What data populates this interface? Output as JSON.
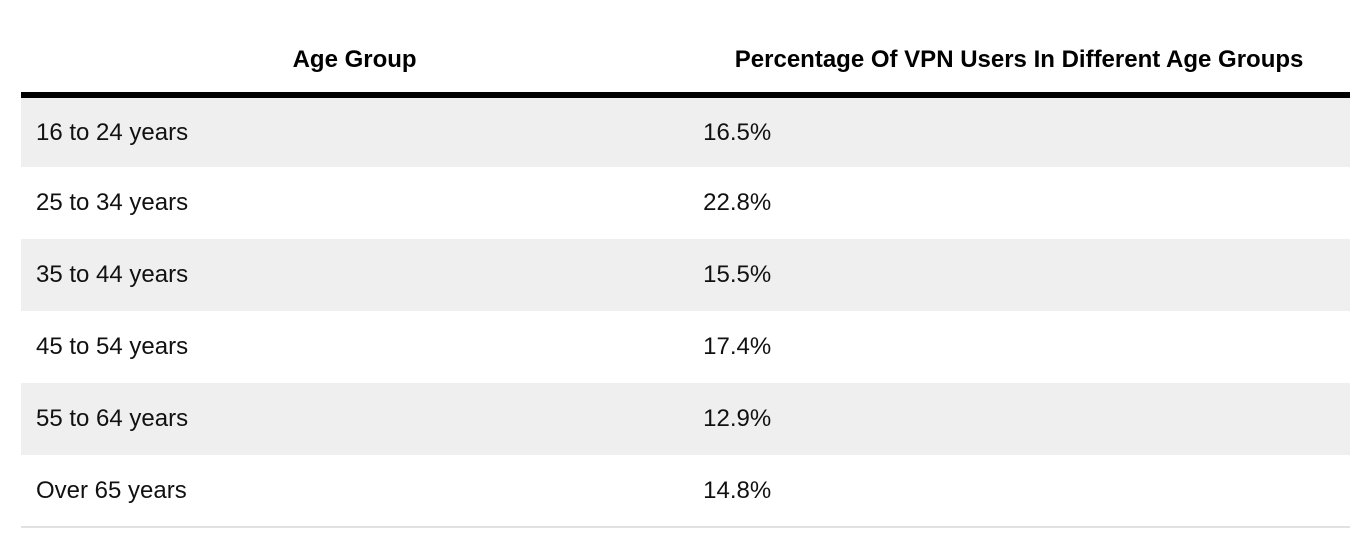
{
  "table": {
    "columns": [
      {
        "label": "Age Group"
      },
      {
        "label": "Percentage Of VPN Users In Different Age Groups"
      }
    ],
    "rows": [
      {
        "age_group": "16 to 24 years",
        "percentage": "16.5%"
      },
      {
        "age_group": "25 to 34 years",
        "percentage": "22.8%"
      },
      {
        "age_group": "35 to 44 years",
        "percentage": "15.5%"
      },
      {
        "age_group": "45 to 54 years",
        "percentage": "17.4%"
      },
      {
        "age_group": "55 to 64 years",
        "percentage": "12.9%"
      },
      {
        "age_group": "Over 65 years",
        "percentage": "14.8%"
      }
    ],
    "colors": {
      "stripe_row": "#efefef",
      "header_rule": "#000000",
      "bottom_rule": "#e1e1e1",
      "text": "#111111"
    }
  },
  "chart_data": {
    "type": "table",
    "title": "Percentage Of VPN Users In Different Age Groups",
    "columns": [
      "Age Group",
      "Percentage Of VPN Users In Different Age Groups"
    ],
    "categories": [
      "16 to 24 years",
      "25 to 34 years",
      "35 to 44 years",
      "45 to 54 years",
      "55 to 64 years",
      "Over 65 years"
    ],
    "values": [
      16.5,
      22.8,
      15.5,
      17.4,
      12.9,
      14.8
    ],
    "unit": "%",
    "layout": {
      "striped_rows": true,
      "header_centered": true,
      "cells_left_aligned": true
    }
  }
}
